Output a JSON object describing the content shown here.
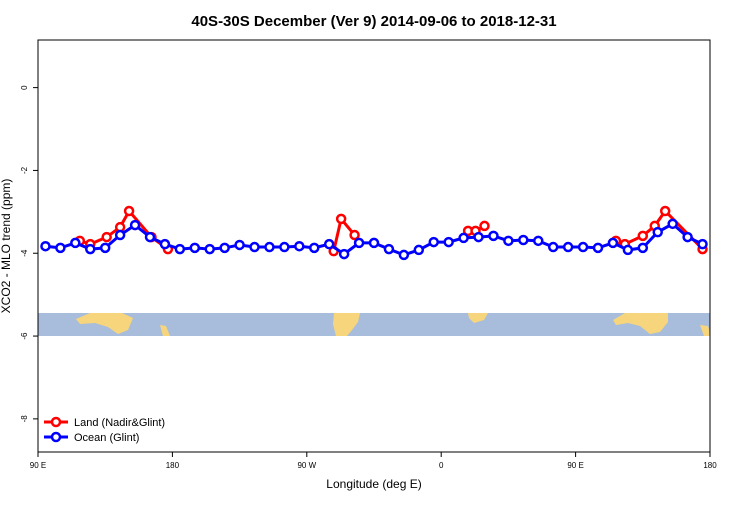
{
  "chart_data": {
    "type": "line",
    "title": "40S-30S December (Ver 9)   2014-09-06 to 2018-12-31",
    "x_label": "Longitude (deg E)",
    "y_label": "XCO2 - MLO trend (ppm)",
    "xlim": [
      90,
      540
    ],
    "ylim": [
      -8.8,
      1.15
    ],
    "xticks": [
      {
        "value": 90,
        "label": "90 E"
      },
      180,
      {
        "value": 270,
        "label": "90 W"
      },
      {
        "value": 360,
        "label": "0"
      },
      {
        "value": 450,
        "label": "90 E"
      },
      {
        "value": 540,
        "label": "180"
      }
    ],
    "yticks": [
      0,
      -2,
      -4,
      -6,
      -8
    ],
    "legend": "bottom-left",
    "series": [
      {
        "name": "Land (Nadir&Glint)",
        "color": "#ff0000",
        "x": [
          118,
          125,
          136,
          145,
          151,
          166,
          177,
          null,
          288,
          293,
          302,
          null,
          378,
          383,
          389,
          null,
          477,
          483,
          495,
          503,
          510,
          535
        ],
        "values": [
          -3.7,
          -3.78,
          -3.61,
          -3.37,
          -2.98,
          -3.61,
          -3.9,
          null,
          -3.95,
          -3.17,
          -3.56,
          null,
          -3.46,
          -3.46,
          -3.34,
          null,
          -3.7,
          -3.78,
          -3.58,
          -3.34,
          -2.98,
          -3.9
        ]
      },
      {
        "name": "Ocean (Glint)",
        "color": "#0000ff",
        "x": [
          95,
          105,
          115,
          125,
          135,
          145,
          155,
          165,
          175,
          185,
          195,
          205,
          215,
          225,
          235,
          245,
          255,
          265,
          275,
          285,
          295,
          305,
          315,
          325,
          335,
          345,
          355,
          365,
          375,
          385,
          395,
          405,
          415,
          425,
          435,
          445,
          455,
          465,
          475,
          485,
          495,
          505,
          515,
          525,
          535
        ],
        "values": [
          -3.83,
          -3.87,
          -3.75,
          -3.9,
          -3.87,
          -3.56,
          -3.32,
          -3.61,
          -3.78,
          -3.9,
          -3.87,
          -3.9,
          -3.87,
          -3.8,
          -3.85,
          -3.85,
          -3.85,
          -3.83,
          -3.87,
          -3.78,
          -4.02,
          -3.75,
          -3.75,
          -3.9,
          -4.04,
          -3.92,
          -3.73,
          -3.73,
          -3.63,
          -3.61,
          -3.58,
          -3.7,
          -3.68,
          -3.7,
          -3.85,
          -3.85,
          -3.85,
          -3.87,
          -3.75,
          -3.92,
          -3.87,
          -3.49,
          -3.29,
          -3.61,
          -3.78
        ]
      }
    ]
  }
}
